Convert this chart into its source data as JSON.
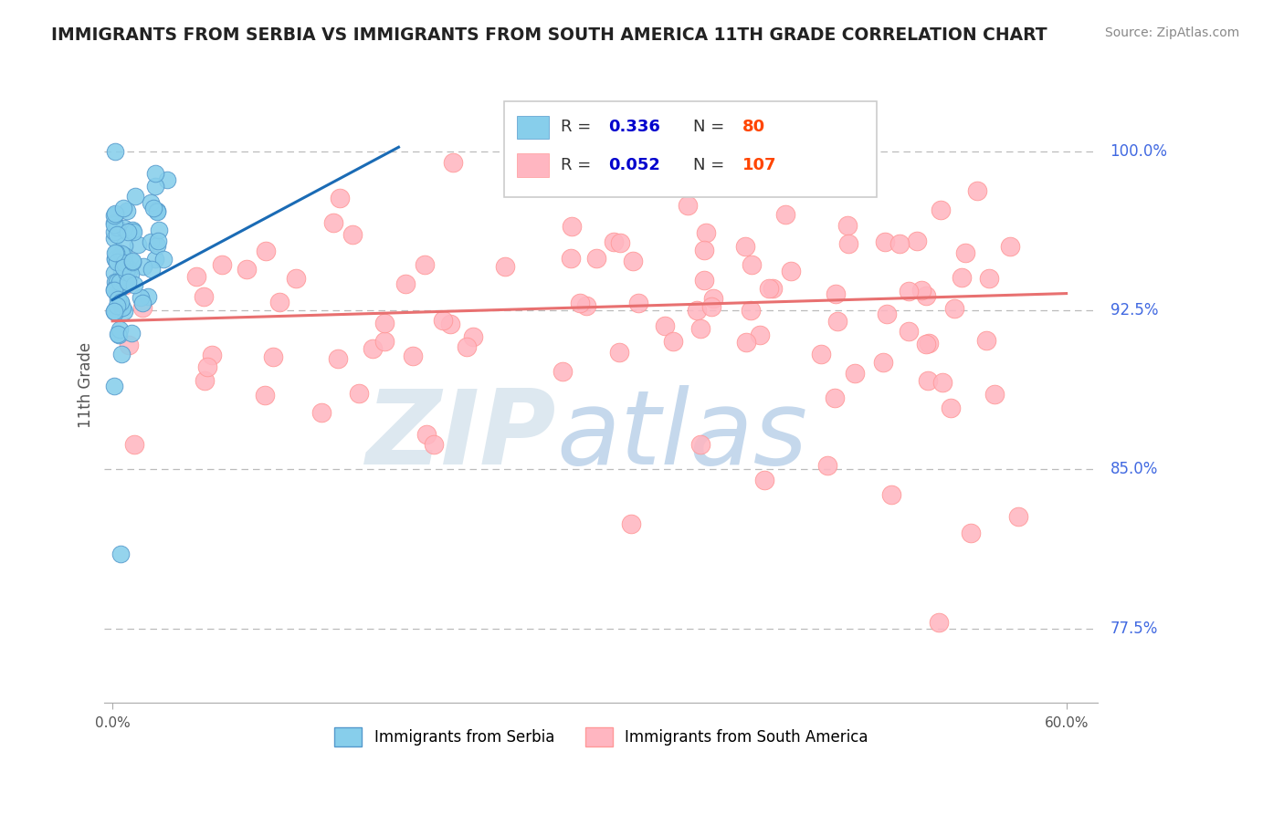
{
  "title": "IMMIGRANTS FROM SERBIA VS IMMIGRANTS FROM SOUTH AMERICA 11TH GRADE CORRELATION CHART",
  "source": "Source: ZipAtlas.com",
  "ylabel": "11th Grade",
  "ytick_labels": [
    "100.0%",
    "92.5%",
    "85.0%",
    "77.5%"
  ],
  "ytick_values": [
    1.0,
    0.925,
    0.85,
    0.775
  ],
  "xlim": [
    -0.005,
    0.62
  ],
  "ylim": [
    0.74,
    1.04
  ],
  "serbia_color": "#87CEEB",
  "serbia_edge": "#5599CC",
  "south_color": "#FFB6C1",
  "south_edge": "#FF9999",
  "serbia_line_color": "#1a6bb5",
  "south_line_color": "#E87070",
  "R_serbia": "0.336",
  "N_serbia": "80",
  "R_south": "0.052",
  "N_south": "107",
  "R_color": "#0000cd",
  "N_color": "#FF4500",
  "legend1": "Immigrants from Serbia",
  "legend2": "Immigrants from South America"
}
